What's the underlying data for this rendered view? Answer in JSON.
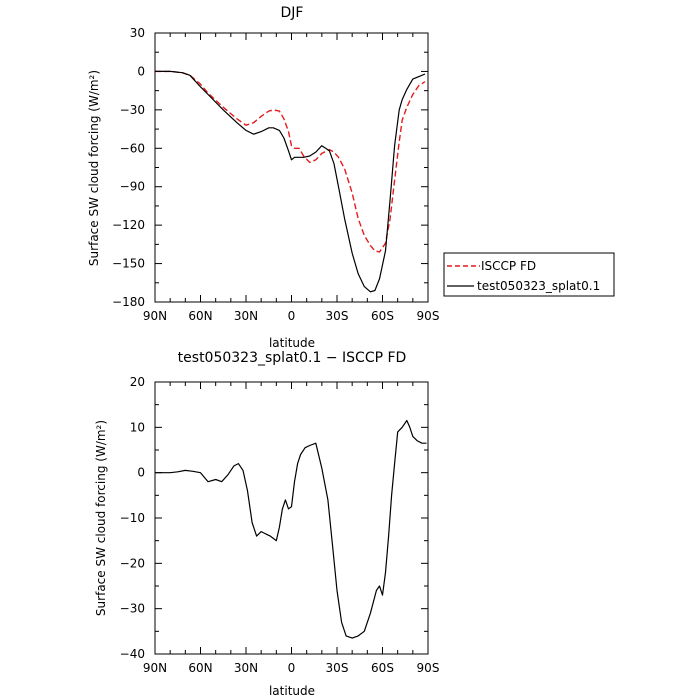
{
  "chart_data": [
    {
      "type": "line",
      "title": "DJF",
      "xlabel": "latitude",
      "ylabel": "Surface SW cloud forcing (W/m²)",
      "xlim": [
        90,
        -90
      ],
      "ylim": [
        -180,
        30
      ],
      "xticks": [
        90,
        60,
        30,
        0,
        -30,
        -60,
        -90
      ],
      "xtick_labels": [
        "90N",
        "60N",
        "30N",
        "0",
        "30S",
        "60S",
        "90S"
      ],
      "yticks": [
        30,
        0,
        -30,
        -60,
        -90,
        -120,
        -150,
        -180
      ],
      "ytick_labels": [
        "30",
        "0",
        "−30",
        "−60",
        "−90",
        "−120",
        "−150",
        "−180"
      ],
      "legend_position": "right-outside",
      "series": [
        {
          "name": "ISCCP FD",
          "color": "#e41a1c",
          "dash": "dashed",
          "x": [
            90,
            80,
            72,
            67,
            60,
            55,
            45,
            36,
            30,
            25,
            20,
            15,
            12,
            8,
            5,
            2,
            0,
            -2,
            -5,
            -8,
            -12,
            -16,
            -20,
            -25,
            -28,
            -31,
            -35,
            -40,
            -44,
            -48,
            -52,
            -55,
            -58,
            -62,
            -65,
            -68,
            -71,
            -73,
            -76,
            -80,
            -84,
            -88
          ],
          "y": [
            0,
            0,
            -1,
            -3,
            -10,
            -17,
            -28,
            -37,
            -42,
            -40,
            -35,
            -31,
            -30,
            -31,
            -37,
            -47,
            -58,
            -60,
            -60,
            -66,
            -71,
            -69,
            -64,
            -61,
            -63,
            -67,
            -76,
            -95,
            -115,
            -128,
            -136,
            -140,
            -141,
            -134,
            -115,
            -85,
            -55,
            -38,
            -28,
            -18,
            -11,
            -8
          ]
        },
        {
          "name": "test050323_splat0.1",
          "color": "#000000",
          "dash": "solid",
          "x": [
            90,
            80,
            72,
            67,
            60,
            55,
            45,
            36,
            30,
            25,
            20,
            15,
            12,
            8,
            5,
            2,
            0,
            -2,
            -5,
            -8,
            -12,
            -16,
            -20,
            -25,
            -28,
            -31,
            -35,
            -40,
            -44,
            -48,
            -52,
            -55,
            -58,
            -62,
            -65,
            -68,
            -71,
            -73,
            -76,
            -80,
            -84,
            -88
          ],
          "y": [
            0,
            0,
            -1,
            -3,
            -12,
            -18,
            -30,
            -40,
            -46,
            -49,
            -47,
            -44,
            -44,
            -46,
            -52,
            -62,
            -69,
            -67,
            -67,
            -67,
            -66,
            -63,
            -58,
            -62,
            -72,
            -90,
            -115,
            -142,
            -158,
            -168,
            -172,
            -171,
            -162,
            -140,
            -100,
            -58,
            -30,
            -22,
            -14,
            -6,
            -4,
            -2
          ]
        }
      ]
    },
    {
      "type": "line",
      "title": "test050323_splat0.1 − ISCCP FD",
      "xlabel": "latitude",
      "ylabel": "Surface SW cloud forcing (W/m²)",
      "xlim": [
        90,
        -90
      ],
      "ylim": [
        -40,
        20
      ],
      "xticks": [
        90,
        60,
        30,
        0,
        -30,
        -60,
        -90
      ],
      "xtick_labels": [
        "90N",
        "60N",
        "30N",
        "0",
        "30S",
        "60S",
        "90S"
      ],
      "yticks": [
        20,
        10,
        0,
        -10,
        -20,
        -30,
        -40
      ],
      "ytick_labels": [
        "20",
        "10",
        "0",
        "−10",
        "−20",
        "−30",
        "−40"
      ],
      "series": [
        {
          "color": "#000000",
          "dash": "solid",
          "x": [
            90,
            80,
            75,
            70,
            65,
            60,
            55,
            50,
            46,
            42,
            38,
            35,
            32,
            29,
            26,
            23,
            20,
            17,
            14,
            12,
            10,
            8,
            6,
            4,
            2,
            0,
            -2,
            -4,
            -6,
            -9,
            -12,
            -16,
            -20,
            -24,
            -27,
            -30,
            -33,
            -36,
            -40,
            -44,
            -48,
            -52,
            -56,
            -58,
            -60,
            -62,
            -64,
            -66,
            -68,
            -70,
            -73,
            -76,
            -78,
            -80,
            -83,
            -86,
            -89
          ],
          "y": [
            0,
            0,
            0.2,
            0.5,
            0.3,
            0,
            -2,
            -1.5,
            -2,
            -0.5,
            1.5,
            2,
            0.5,
            -4,
            -11,
            -14,
            -13,
            -13.5,
            -14,
            -14.5,
            -15,
            -12,
            -8,
            -6,
            -8,
            -7.5,
            -2,
            2,
            4,
            5.5,
            6,
            6.5,
            1,
            -6,
            -16,
            -26,
            -33,
            -36,
            -36.5,
            -36,
            -35,
            -31,
            -26,
            -25,
            -27,
            -22,
            -14,
            -5,
            2,
            9,
            10,
            11.5,
            10,
            8,
            7,
            6.5,
            6.5
          ]
        }
      ]
    }
  ],
  "legend_items": [
    "ISCCP FD",
    "test050323_splat0.1"
  ]
}
